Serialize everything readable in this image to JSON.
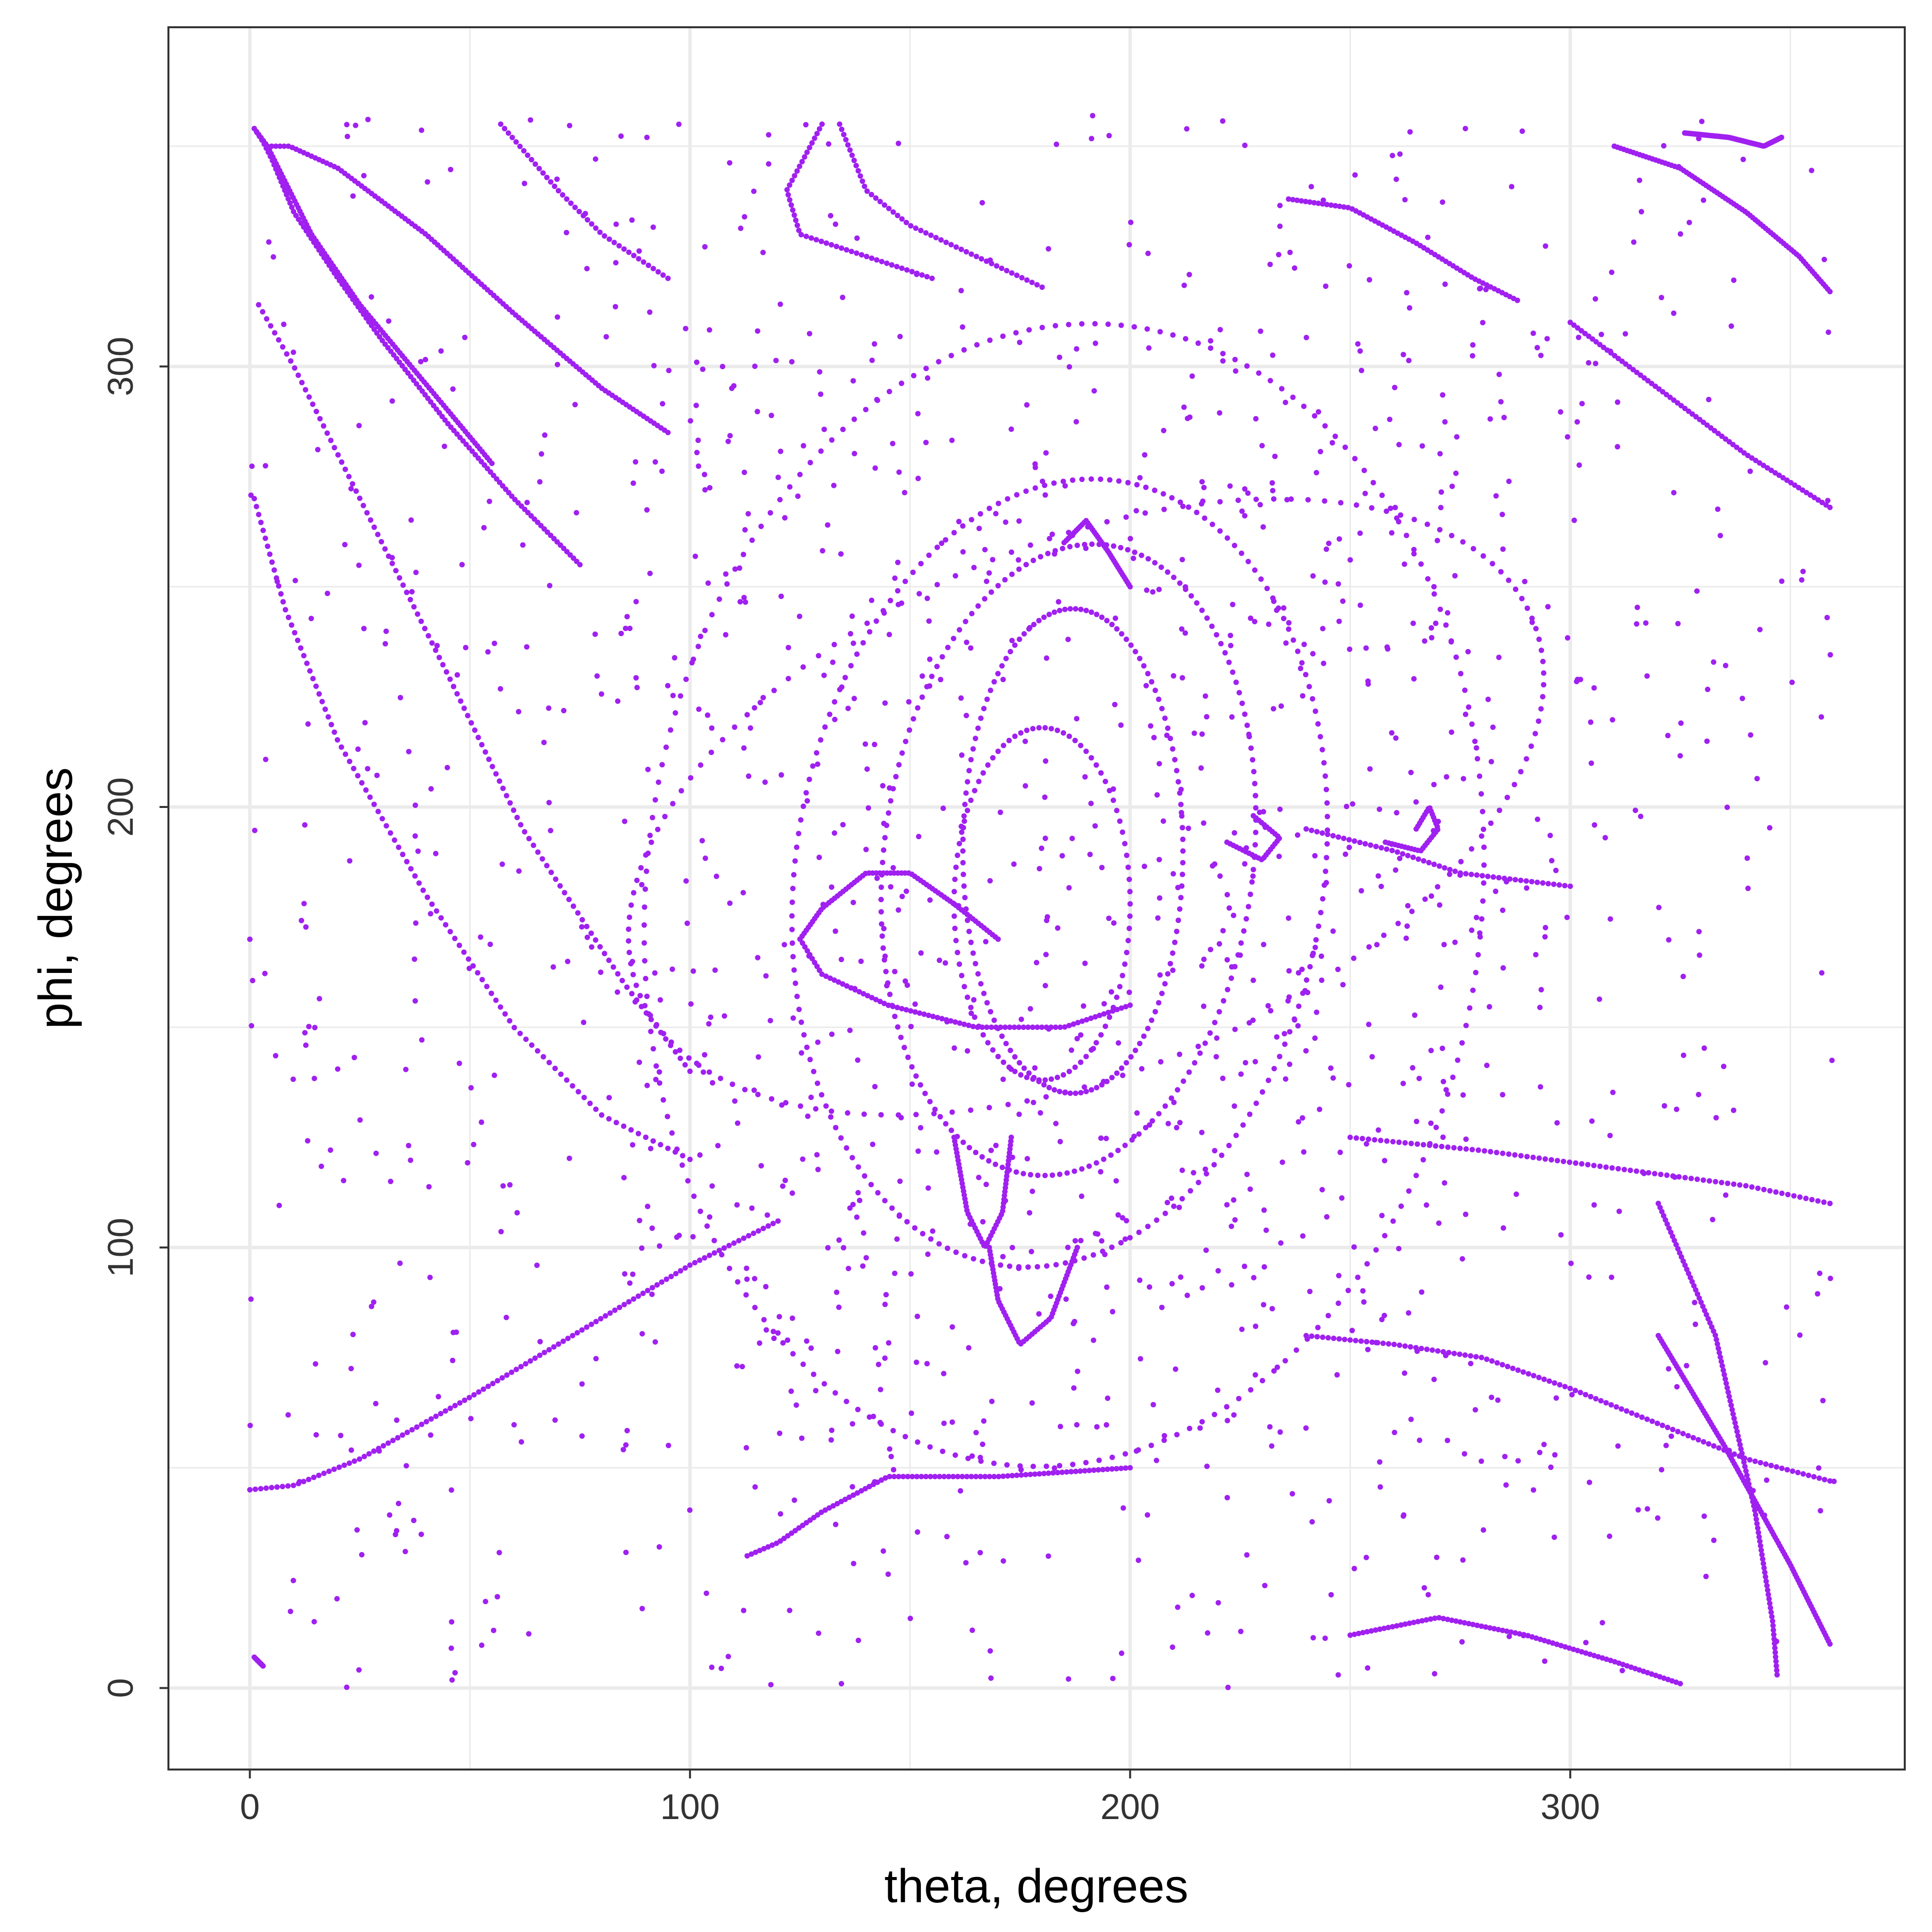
{
  "chart_data": {
    "type": "scatter",
    "xlabel": "theta, degrees",
    "ylabel": "phi, degrees",
    "xlim": [
      -18.5,
      376
    ],
    "ylim": [
      -18.5,
      377
    ],
    "x_ticks": [
      0,
      100,
      200,
      300
    ],
    "y_ticks": [
      0,
      100,
      200,
      300
    ],
    "grid": true,
    "legend": "none",
    "point_color": "#A020F0",
    "series": [
      {
        "curves": [
          {
            "kind": "line",
            "p": [
              [
                1,
                354
              ],
              [
                3,
                351
              ],
              [
                5,
                347
              ],
              [
                10,
                335
              ],
              [
                20,
                320
              ],
              [
                30,
                306
              ],
              [
                45,
                287
              ],
              [
                60,
                270
              ],
              [
                75,
                255
              ]
            ],
            "n": 120
          },
          {
            "kind": "line",
            "p": [
              [
                1,
                354
              ],
              [
                4,
                350
              ],
              [
                7,
                344
              ],
              [
                14,
                330
              ],
              [
                25,
                314
              ],
              [
                40,
                296
              ],
              [
                55,
                278
              ]
            ],
            "n": 110
          },
          {
            "kind": "line",
            "p": [
              [
                4,
                350
              ],
              [
                9,
                350
              ],
              [
                20,
                345
              ],
              [
                40,
                330
              ],
              [
                60,
                312
              ],
              [
                80,
                295
              ],
              [
                95,
                285
              ]
            ],
            "n": 120
          },
          {
            "kind": "line",
            "p": [
              [
                2,
                314
              ],
              [
                10,
                300
              ],
              [
                25,
                270
              ],
              [
                45,
                230
              ],
              [
                62,
                195
              ],
              [
                85,
                160
              ],
              [
                100,
                140
              ]
            ],
            "n": 110
          },
          {
            "kind": "line",
            "p": [
              [
                1,
                270
              ],
              [
                8,
                245
              ],
              [
                20,
                215
              ],
              [
                40,
                180
              ],
              [
                60,
                150
              ],
              [
                80,
                130
              ],
              [
                100,
                120
              ]
            ],
            "n": 100
          },
          {
            "kind": "line",
            "p": [
              [
                0,
                45
              ],
              [
                10,
                46
              ],
              [
                25,
                52
              ],
              [
                50,
                66
              ],
              [
                80,
                84
              ],
              [
                100,
                96
              ],
              [
                120,
                106
              ]
            ],
            "n": 110
          },
          {
            "kind": "line",
            "p": [
              [
                113,
                30
              ],
              [
                120,
                33
              ],
              [
                130,
                40
              ],
              [
                145,
                48
              ],
              [
                170,
                48
              ],
              [
                200,
                50
              ]
            ],
            "n": 90
          },
          {
            "kind": "line",
            "p": [
              [
                236,
                338
              ],
              [
                250,
                336
              ],
              [
                265,
                328
              ],
              [
                278,
                320
              ],
              [
                288,
                315
              ]
            ],
            "n": 60
          },
          {
            "kind": "line",
            "p": [
              [
                326,
                353
              ],
              [
                336,
                352
              ],
              [
                344,
                350
              ],
              [
                348,
                352
              ]
            ],
            "n": 70
          },
          {
            "kind": "line",
            "p": [
              [
                310,
                350
              ],
              [
                325,
                345
              ],
              [
                340,
                335
              ],
              [
                352,
                325
              ],
              [
                359,
                317
              ]
            ],
            "n": 80
          },
          {
            "kind": "line",
            "p": [
              [
                300,
                310
              ],
              [
                320,
                295
              ],
              [
                340,
                280
              ],
              [
                359,
                268
              ]
            ],
            "n": 70
          },
          {
            "kind": "line",
            "p": [
              [
                320,
                110
              ],
              [
                333,
                80
              ],
              [
                342,
                40
              ],
              [
                346,
                15
              ],
              [
                347,
                3
              ]
            ],
            "n": 110
          },
          {
            "kind": "line",
            "p": [
              [
                320,
                80
              ],
              [
                335,
                55
              ],
              [
                350,
                28
              ],
              [
                359,
                10
              ]
            ],
            "n": 110
          },
          {
            "kind": "line",
            "p": [
              [
                250,
                12
              ],
              [
                270,
                16
              ],
              [
                290,
                12
              ],
              [
                310,
                6
              ],
              [
                325,
                1
              ]
            ],
            "n": 80
          },
          {
            "kind": "line",
            "p": [
              [
                240,
                80
              ],
              [
                260,
                78
              ],
              [
                280,
                75
              ],
              [
                300,
                68
              ],
              [
                320,
                60
              ],
              [
                340,
                52
              ],
              [
                359,
                47
              ]
            ],
            "n": 100
          },
          {
            "kind": "line",
            "p": [
              [
                250,
                125
              ],
              [
                280,
                122
              ],
              [
                310,
                118
              ],
              [
                340,
                114
              ],
              [
                359,
                110
              ]
            ],
            "n": 80
          },
          {
            "kind": "line",
            "p": [
              [
                240,
                195
              ],
              [
                260,
                190
              ],
              [
                275,
                185
              ],
              [
                300,
                182
              ]
            ],
            "n": 50
          },
          {
            "kind": "line",
            "p": [
              [
                1,
                7
              ],
              [
                2,
                6
              ],
              [
                3,
                5
              ]
            ],
            "n": 12
          },
          {
            "kind": "line",
            "p": [
              [
                125,
                170
              ],
              [
                130,
                177
              ],
              [
                140,
                185
              ],
              [
                150,
                185
              ],
              [
                160,
                178
              ],
              [
                170,
                170
              ]
            ],
            "n": 70
          },
          {
            "kind": "line",
            "p": [
              [
                125,
                170
              ],
              [
                130,
                162
              ],
              [
                145,
                155
              ],
              [
                165,
                150
              ],
              [
                185,
                150
              ],
              [
                200,
                155
              ]
            ],
            "n": 80
          },
          {
            "kind": "line",
            "p": [
              [
                160,
                125
              ],
              [
                163,
                108
              ],
              [
                167,
                100
              ],
              [
                171,
                108
              ],
              [
                173,
                125
              ]
            ],
            "n": 60
          },
          {
            "kind": "line",
            "p": [
              [
                168,
                100
              ],
              [
                170,
                88
              ],
              [
                175,
                78
              ],
              [
                182,
                84
              ],
              [
                188,
                100
              ]
            ],
            "n": 60
          },
          {
            "kind": "line",
            "p": [
              [
                185,
                260
              ],
              [
                190,
                265
              ],
              [
                195,
                258
              ],
              [
                200,
                250
              ]
            ],
            "n": 40
          },
          {
            "kind": "line",
            "p": [
              [
                265,
                195
              ],
              [
                268,
                200
              ],
              [
                270,
                195
              ],
              [
                266,
                190
              ],
              [
                258,
                192
              ]
            ],
            "n": 35
          },
          {
            "kind": "line",
            "p": [
              [
                228,
                198
              ],
              [
                234,
                193
              ],
              [
                230,
                188
              ],
              [
                222,
                192
              ]
            ],
            "n": 30
          },
          {
            "kind": "line",
            "p": [
              [
                57,
                355
              ],
              [
                70,
                340
              ],
              [
                80,
                330
              ],
              [
                95,
                320
              ]
            ],
            "n": 40
          },
          {
            "kind": "line",
            "p": [
              [
                134,
                355
              ],
              [
                140,
                340
              ],
              [
                150,
                332
              ],
              [
                165,
                325
              ],
              [
                180,
                318
              ]
            ],
            "n": 50
          },
          {
            "kind": "line",
            "p": [
              [
                130,
                355
              ],
              [
                122,
                340
              ],
              [
                125,
                330
              ],
              [
                140,
                325
              ],
              [
                155,
                320
              ]
            ],
            "n": 50
          },
          {
            "kind": "ellipse",
            "cx": 187,
            "cy": 190,
            "rx": 25,
            "ry": 55,
            "rot": 0,
            "n": 130
          },
          {
            "kind": "ellipse",
            "cx": 186,
            "cy": 188,
            "rx": 42,
            "ry": 72,
            "rot": -0.12,
            "n": 160
          },
          {
            "kind": "ellipse",
            "cx": 184,
            "cy": 185,
            "rx": 60,
            "ry": 90,
            "rot": -0.15,
            "n": 180
          },
          {
            "kind": "ellipse",
            "cx": 185,
            "cy": 180,
            "rx": 95,
            "ry": 130,
            "rot": -0.1,
            "n": 200
          },
          {
            "kind": "ellipse",
            "cx": 180,
            "cy": 178,
            "rx": 20,
            "ry": 40,
            "rot": 0,
            "n": 90
          },
          {
            "kind": "ellipse",
            "cx": 190,
            "cy": 200,
            "rx": 110,
            "ry": 60,
            "rot": 0.4,
            "n": 150
          }
        ],
        "scatter_count": 1400,
        "scatter_seed": 7
      }
    ]
  }
}
